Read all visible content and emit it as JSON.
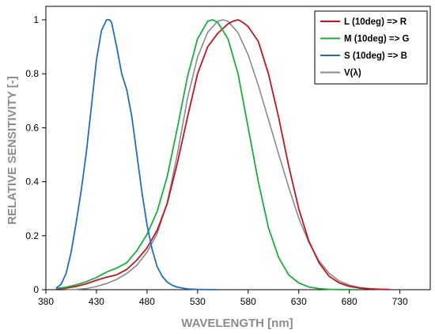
{
  "chart_data": {
    "type": "line",
    "title": "",
    "xlabel": "WAVELENGTH [nm]",
    "ylabel": "RELATIVE SENSITIVITY [-]",
    "xlim": [
      380,
      760
    ],
    "ylim": [
      0,
      1.05
    ],
    "xticks": [
      380,
      430,
      480,
      530,
      580,
      630,
      680,
      730
    ],
    "yticks": [
      0,
      0.2,
      0.4,
      0.6,
      0.8,
      1
    ],
    "ytick_labels": [
      "0",
      "0.2",
      "0.4",
      "0.6",
      "0.8",
      "1"
    ],
    "grid": false,
    "legend_position": "top-right",
    "series": [
      {
        "name": "L (10deg) => R",
        "color": "#c0161f",
        "x": [
          390,
          400,
          410,
          420,
          430,
          440,
          450,
          460,
          470,
          480,
          490,
          500,
          510,
          520,
          530,
          540,
          550,
          560,
          565,
          570,
          575,
          580,
          590,
          600,
          610,
          620,
          630,
          640,
          650,
          660,
          670,
          680,
          690,
          700,
          710,
          720
        ],
        "y": [
          0.003,
          0.006,
          0.012,
          0.022,
          0.035,
          0.046,
          0.055,
          0.075,
          0.11,
          0.155,
          0.22,
          0.32,
          0.47,
          0.64,
          0.8,
          0.9,
          0.95,
          0.985,
          0.995,
          1.0,
          0.99,
          0.975,
          0.92,
          0.8,
          0.64,
          0.46,
          0.3,
          0.18,
          0.1,
          0.05,
          0.025,
          0.012,
          0.006,
          0.003,
          0.0015,
          0.0005
        ]
      },
      {
        "name": "M (10deg) => G",
        "color": "#1aae3e",
        "x": [
          390,
          400,
          410,
          420,
          430,
          440,
          450,
          460,
          470,
          480,
          490,
          500,
          510,
          520,
          530,
          540,
          545,
          550,
          560,
          570,
          580,
          590,
          600,
          610,
          620,
          630,
          640,
          650,
          660,
          670,
          680,
          690
        ],
        "y": [
          0.004,
          0.009,
          0.018,
          0.03,
          0.045,
          0.065,
          0.08,
          0.1,
          0.145,
          0.205,
          0.29,
          0.42,
          0.6,
          0.79,
          0.93,
          0.995,
          1.0,
          0.99,
          0.93,
          0.8,
          0.6,
          0.4,
          0.23,
          0.12,
          0.055,
          0.025,
          0.01,
          0.004,
          0.0015,
          0.0006,
          0.0002,
          0.0001
        ]
      },
      {
        "name": "S (10deg) => B",
        "color": "#1f6fbf",
        "x": [
          390,
          395,
          400,
          405,
          410,
          415,
          420,
          425,
          430,
          435,
          440,
          443,
          445,
          450,
          455,
          460,
          465,
          470,
          475,
          480,
          485,
          490,
          495,
          500,
          505,
          510,
          520,
          530,
          540,
          550
        ],
        "y": [
          0.005,
          0.02,
          0.06,
          0.14,
          0.25,
          0.37,
          0.51,
          0.68,
          0.85,
          0.96,
          1.0,
          1.0,
          0.99,
          0.9,
          0.8,
          0.74,
          0.64,
          0.5,
          0.36,
          0.24,
          0.15,
          0.085,
          0.05,
          0.028,
          0.016,
          0.009,
          0.003,
          0.001,
          0.0003,
          0.0001
        ]
      },
      {
        "name": "V(λ)",
        "color": "#8a8a8a",
        "x": [
          400,
          410,
          420,
          430,
          440,
          450,
          460,
          470,
          480,
          490,
          500,
          510,
          520,
          530,
          540,
          550,
          555,
          560,
          570,
          580,
          590,
          600,
          610,
          620,
          630,
          640,
          650,
          660,
          670,
          680,
          690,
          700,
          710,
          720
        ],
        "y": [
          0.0004,
          0.0012,
          0.004,
          0.0116,
          0.023,
          0.038,
          0.06,
          0.091,
          0.139,
          0.208,
          0.323,
          0.503,
          0.71,
          0.862,
          0.954,
          0.995,
          1.0,
          0.995,
          0.952,
          0.87,
          0.757,
          0.631,
          0.503,
          0.381,
          0.265,
          0.175,
          0.107,
          0.061,
          0.032,
          0.017,
          0.0082,
          0.0041,
          0.0021,
          0.001
        ]
      }
    ]
  }
}
